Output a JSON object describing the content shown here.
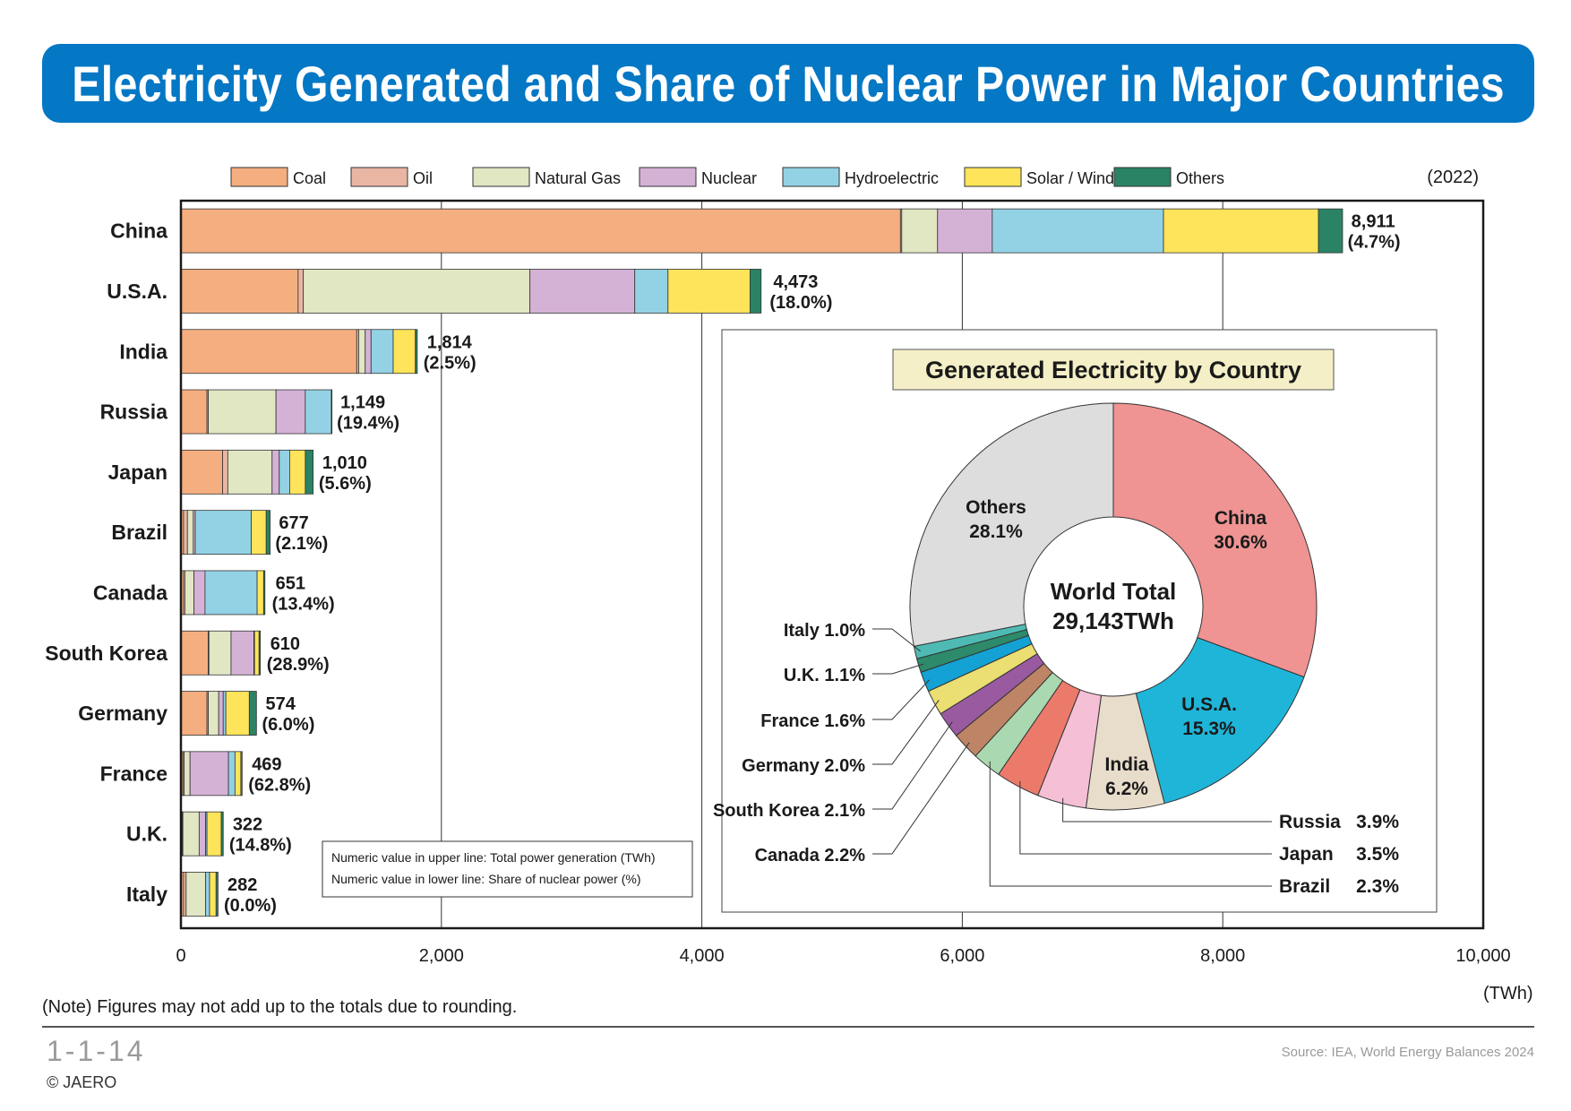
{
  "title": "Electricity Generated and Share of Nuclear Power in Major Countries",
  "year_label": "(2022)",
  "note": "(Note) Figures may not add up to the totals due to rounding.",
  "figure_number": "1-1-14",
  "copyright": "© JAERO",
  "source": "Source: IEA, World Energy Balances 2024",
  "unit_label": "(TWh)",
  "legend_box": {
    "line1": "Numeric value in upper line: Total power generation (TWh)",
    "line2": "Numeric value in lower line: Share of nuclear power (%)"
  },
  "colors": {
    "Coal": "#f5ae80",
    "Oil": "#e9b6a4",
    "Natural Gas": "#e1e6c3",
    "Nuclear": "#d4b2d6",
    "Hydroelectric": "#93d2e4",
    "Solar / Wind": "#fde45a",
    "Others": "#2a8364",
    "banner": "#0477c5"
  },
  "chart_data": [
    {
      "type": "bar",
      "orientation": "horizontal",
      "stacked": true,
      "xlim": [
        0,
        10000
      ],
      "xticks": [
        "0",
        "2,000",
        "4,000",
        "6,000",
        "8,000",
        "10,000"
      ],
      "xlabel": "(TWh)",
      "grid": true,
      "legend_position": "top",
      "categories": [
        "China",
        "U.S.A.",
        "India",
        "Russia",
        "Japan",
        "Brazil",
        "Canada",
        "South Korea",
        "Germany",
        "France",
        "U.K.",
        "Italy"
      ],
      "series": [
        {
          "name": "Coal",
          "values": [
            5525,
            900,
            1350,
            200,
            320,
            20,
            20,
            210,
            200,
            15,
            10,
            20
          ]
        },
        {
          "name": "Oil",
          "values": [
            10,
            40,
            15,
            10,
            40,
            30,
            10,
            5,
            10,
            10,
            5,
            20
          ]
        },
        {
          "name": "Natural Gas",
          "values": [
            275,
            1740,
            50,
            520,
            340,
            45,
            70,
            170,
            80,
            45,
            125,
            150
          ]
        },
        {
          "name": "Nuclear",
          "values": [
            420,
            805,
            45,
            225,
            55,
            15,
            85,
            175,
            35,
            295,
            50,
            0
          ]
        },
        {
          "name": "Hydroelectric",
          "values": [
            1315,
            255,
            170,
            200,
            80,
            430,
            400,
            5,
            20,
            50,
            10,
            30
          ]
        },
        {
          "name": "Solar / Wind",
          "values": [
            1190,
            630,
            170,
            5,
            120,
            115,
            50,
            35,
            180,
            45,
            110,
            50
          ]
        },
        {
          "name": "Others",
          "values": [
            185,
            85,
            15,
            0,
            60,
            30,
            10,
            10,
            55,
            10,
            15,
            15
          ]
        }
      ],
      "totals": [
        8911,
        4473,
        1814,
        1149,
        1010,
        677,
        651,
        610,
        574,
        469,
        322,
        282
      ],
      "total_labels": [
        "8,911",
        "4,473",
        "1,814",
        "1,149",
        "1,010",
        "677",
        "651",
        "610",
        "574",
        "469",
        "322",
        "282"
      ],
      "nuclear_share_labels": [
        "(4.7%)",
        "(18.0%)",
        "(2.5%)",
        "(19.4%)",
        "(5.6%)",
        "(2.1%)",
        "(13.4%)",
        "(28.9%)",
        "(6.0%)",
        "(62.8%)",
        "(14.8%)",
        "(0.0%)"
      ]
    },
    {
      "type": "pie",
      "donut": true,
      "title": "Generated Electricity by Country",
      "center_label": [
        "World Total",
        "29,143TWh"
      ],
      "slices": [
        {
          "name": "China",
          "value": 30.6,
          "label": "30.6%",
          "color": "#ef9393"
        },
        {
          "name": "U.S.A.",
          "value": 15.3,
          "label": "15.3%",
          "color": "#1fb5d8"
        },
        {
          "name": "India",
          "value": 6.2,
          "label": "6.2%",
          "color": "#e8dccb"
        },
        {
          "name": "Russia",
          "value": 3.9,
          "label": "3.9%",
          "color": "#f5bfd6"
        },
        {
          "name": "Japan",
          "value": 3.5,
          "label": "3.5%",
          "color": "#ec7a6b"
        },
        {
          "name": "Brazil",
          "value": 2.3,
          "label": "2.3%",
          "color": "#aad8b1"
        },
        {
          "name": "Canada",
          "value": 2.2,
          "label": "2.2%",
          "color": "#bd8465"
        },
        {
          "name": "South Korea",
          "value": 2.1,
          "label": "2.1%",
          "color": "#9a5aa0"
        },
        {
          "name": "Germany",
          "value": 2.0,
          "label": "2.0%",
          "color": "#ebde72"
        },
        {
          "name": "France",
          "value": 1.6,
          "label": "1.6%",
          "color": "#14a1d4"
        },
        {
          "name": "U.K.",
          "value": 1.1,
          "label": "1.1%",
          "color": "#2d8a6a"
        },
        {
          "name": "Italy",
          "value": 1.0,
          "label": "1.0%",
          "color": "#4fbab3"
        },
        {
          "name": "Others",
          "value": 28.1,
          "label": "28.1%",
          "color": "#dddddd"
        }
      ]
    }
  ]
}
